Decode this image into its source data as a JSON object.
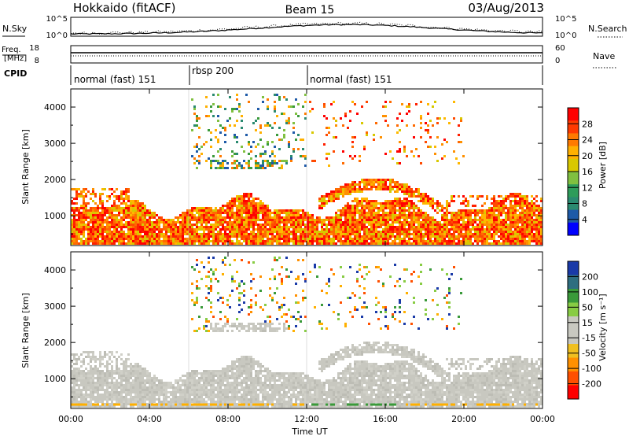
{
  "header": {
    "title": "Hokkaido (fitACF)",
    "beam": "Beam 15",
    "date": "03/Aug/2013"
  },
  "noise_panel": {
    "left_label": "N.Sky",
    "right_label": "N.Search",
    "left_ticks": [
      "10^5",
      "10^0"
    ],
    "right_ticks": [
      "10^5",
      "10^0"
    ]
  },
  "freq_panel": {
    "left_label_1": "Freq.",
    "left_label_2": "[MHz]",
    "right_label": "Nave",
    "left_ticks": [
      "18",
      "8"
    ],
    "right_ticks": [
      "60",
      "0"
    ]
  },
  "cpid_panel": {
    "label": "CPID",
    "modes": [
      {
        "start_hour": 0,
        "end_hour": 6,
        "label": "normal (fast) 151"
      },
      {
        "start_hour": 6,
        "end_hour": 12,
        "label": "rbsp 200"
      },
      {
        "start_hour": 12,
        "end_hour": 24,
        "label": "normal (fast) 151"
      }
    ]
  },
  "chart_data": [
    {
      "type": "heatmap",
      "panel": "power",
      "ylabel": "Slant Range [km]",
      "y_ticks": [
        1000,
        2000,
        3000,
        4000
      ],
      "ylim": [
        180,
        4500
      ],
      "xlim": [
        0,
        24
      ],
      "colorbar_label": "Power [dB]",
      "colorbar_ticks": [
        "28",
        "24",
        "20",
        "16",
        "12",
        "8",
        "4"
      ],
      "colorbar_colors": [
        "#ff0000",
        "#ff3a00",
        "#ff7a00",
        "#ffb000",
        "#d8c800",
        "#80c040",
        "#2e9c5a",
        "#2a8a70",
        "#1e5aa8",
        "#0000ff"
      ],
      "bands": [
        {
          "range_km": [
            300,
            1300
          ],
          "x_hours": [
            0,
            24
          ],
          "level": "high"
        },
        {
          "range_km": [
            1500,
            2100
          ],
          "x_hours": [
            13,
            18.5
          ],
          "level": "high"
        },
        {
          "range_km": [
            2300,
            4300
          ],
          "x_hours": [
            6,
            12
          ],
          "level": "low"
        }
      ]
    },
    {
      "type": "heatmap",
      "panel": "velocity",
      "ylabel": "Slant Range [km]",
      "y_ticks": [
        1000,
        2000,
        3000,
        4000
      ],
      "ylim": [
        180,
        4500
      ],
      "xlim": [
        0,
        24
      ],
      "xlabel": "Time UT",
      "x_ticks": [
        "00:00",
        "04:00",
        "08:00",
        "12:00",
        "16:00",
        "20:00",
        "00:00"
      ],
      "colorbar_label": "Velocity [m s⁻¹]",
      "colorbar_ticks": [
        "200",
        "100",
        "50",
        "15",
        "-15",
        "-50",
        "-100",
        "-200"
      ],
      "colorbar_colors": [
        "#1a3aa8",
        "#2e6e80",
        "#3a9a3a",
        "#88cc44",
        "#c8c8c0",
        "#c8c8c0",
        "#f0c020",
        "#ff9000",
        "#ff5000",
        "#ff0000"
      ]
    }
  ]
}
